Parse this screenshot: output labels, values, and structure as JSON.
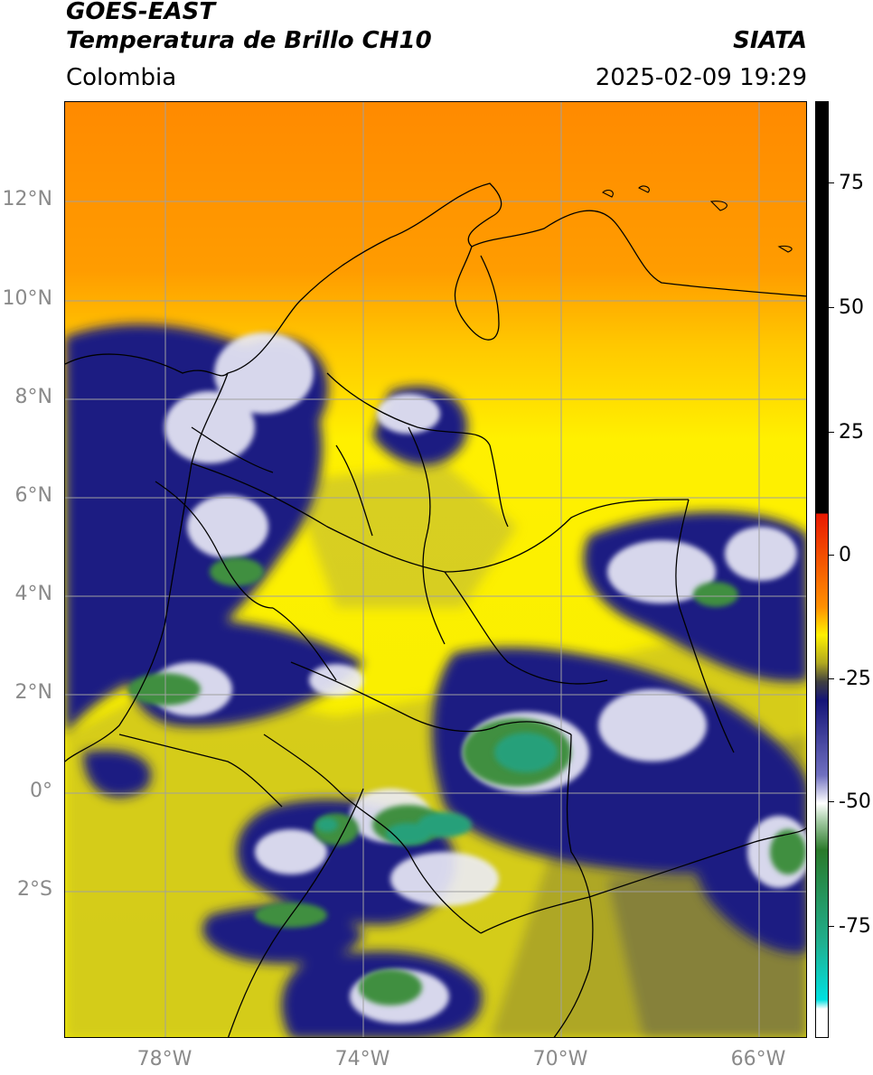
{
  "header": {
    "satellite": "GOES-EAST",
    "product": "Temperatura de Brillo CH10",
    "region": "Colombia",
    "source": "SIATA",
    "datetime": "2025-02-09 19:29"
  },
  "map": {
    "lat_labels": [
      "12°N",
      "10°N",
      "8°N",
      "6°N",
      "4°N",
      "2°N",
      "0°",
      "2°S"
    ],
    "lon_labels": [
      "78°W",
      "74°W",
      "70°W",
      "66°W"
    ],
    "gridline_color": "#a0a0a0"
  },
  "colorbar": {
    "tick_labels": [
      "75",
      "50",
      "25",
      "0",
      "-25",
      "-50",
      "-75"
    ],
    "colors": {
      "warm_top": "#000000",
      "red": "#e81800",
      "orange": "#ff9000",
      "yellow": "#fff000",
      "olive": "#b0a820",
      "dark_gray": "#404040",
      "navy": "#141478",
      "white": "#ffffff",
      "green": "#2a7a2a",
      "teal": "#20b090",
      "cyan": "#00e0e0"
    }
  }
}
